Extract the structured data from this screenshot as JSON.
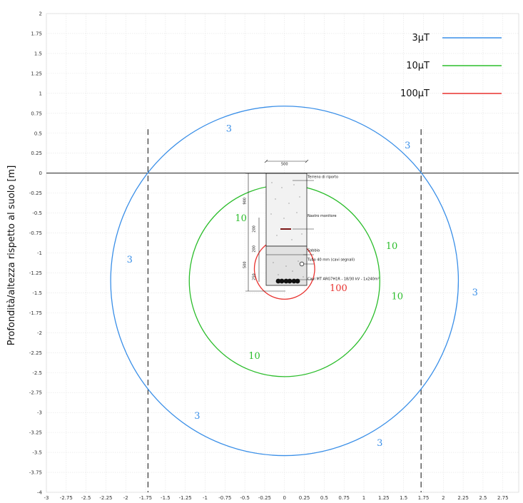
{
  "chart_data": {
    "type": "line",
    "title": "",
    "xlabel": "",
    "ylabel": "Profondità/altezza rispetto al suolo [m]",
    "xlim": [
      -3,
      2.95
    ],
    "ylim": [
      -4,
      2
    ],
    "x_ticks": [
      "-3",
      "-2.75",
      "-2.5",
      "-2.25",
      "-2",
      "-1.75",
      "-1.5",
      "-1.25",
      "-1",
      "-0.75",
      "-0.5",
      "-0.25",
      "0",
      "0.25",
      "0.5",
      "0.75",
      "1",
      "1.25",
      "1.5",
      "1.75",
      "2",
      "2.25",
      "2.5",
      "2.75"
    ],
    "y_ticks": [
      "2",
      "1.75",
      "1.5",
      "1.25",
      "1",
      "0.75",
      "0.5",
      "0.25",
      "0",
      "-0.25",
      "-0.5",
      "-0.75",
      "-1",
      "-1.25",
      "-1.5",
      "-1.75",
      "-2",
      "-2.25",
      "-2.5",
      "-2.75",
      "-3",
      "-3.25",
      "-3.5",
      "-3.75",
      "-4"
    ],
    "x_tick_values": [
      -3,
      -2.75,
      -2.5,
      -2.25,
      -2,
      -1.75,
      -1.5,
      -1.25,
      -1,
      -0.75,
      -0.5,
      -0.25,
      0,
      0.25,
      0.5,
      0.75,
      1,
      1.25,
      1.5,
      1.75,
      2,
      2.25,
      2.5,
      2.75
    ],
    "y_tick_values": [
      2,
      1.75,
      1.5,
      1.25,
      1,
      0.75,
      0.5,
      0.25,
      0,
      -0.25,
      -0.5,
      -0.75,
      -1,
      -1.25,
      -1.5,
      -1.75,
      -2,
      -2.25,
      -2.5,
      -2.75,
      -3,
      -3.25,
      -3.5,
      -3.75,
      -4
    ],
    "grid": true,
    "legend_position": "top-right",
    "legend": [
      {
        "label": "3µT",
        "color": "#3a8fe8"
      },
      {
        "label": "10µT",
        "color": "#2bbd2b"
      },
      {
        "label": "100µT",
        "color": "#e8322f"
      }
    ],
    "series": [
      {
        "name": "3µT",
        "color": "#3a8fe8",
        "shape": "circle",
        "center": [
          0,
          -1.35
        ],
        "radius": 2.19
      },
      {
        "name": "10µT",
        "color": "#2bbd2b",
        "shape": "circle",
        "center": [
          0,
          -1.35
        ],
        "radius": 1.2
      },
      {
        "name": "100µT",
        "color": "#e8322f",
        "shape": "circle",
        "center": [
          0,
          -1.2
        ],
        "radius": 0.38
      }
    ],
    "reference_lines": [
      {
        "type": "horizontal",
        "y": 0,
        "style": "solid",
        "color": "#222222"
      },
      {
        "type": "vertical",
        "x": -1.72,
        "y_range": [
          -4,
          0.55
        ],
        "style": "dashed",
        "color": "#222222"
      },
      {
        "type": "vertical",
        "x": 1.72,
        "y_range": [
          -4,
          0.55
        ],
        "style": "dashed",
        "color": "#222222"
      }
    ],
    "contour_labels": [
      {
        "text": "3",
        "x": -0.7,
        "y": 0.52,
        "color": "#3a8fe8"
      },
      {
        "text": "3",
        "x": 1.55,
        "y": 0.31,
        "color": "#3a8fe8"
      },
      {
        "text": "3",
        "x": -1.95,
        "y": -1.12,
        "color": "#3a8fe8"
      },
      {
        "text": "3",
        "x": 2.4,
        "y": -1.53,
        "color": "#3a8fe8"
      },
      {
        "text": "3",
        "x": -1.1,
        "y": -3.08,
        "color": "#3a8fe8"
      },
      {
        "text": "3",
        "x": 1.2,
        "y": -3.42,
        "color": "#3a8fe8"
      },
      {
        "text": "10",
        "x": -0.55,
        "y": -0.6,
        "color": "#2bbd2b"
      },
      {
        "text": "10",
        "x": 1.35,
        "y": -0.95,
        "color": "#2bbd2b"
      },
      {
        "text": "10",
        "x": 1.42,
        "y": -1.58,
        "color": "#2bbd2b"
      },
      {
        "text": "10",
        "x": -0.38,
        "y": -2.33,
        "color": "#2bbd2b"
      },
      {
        "text": "100",
        "x": 0.68,
        "y": -1.48,
        "color": "#e8322f"
      }
    ],
    "annotations": [
      {
        "text": "500",
        "x": 0,
        "y": 0.1
      },
      {
        "text": "Terreno di riporto",
        "x": 0.29,
        "y": -0.06
      },
      {
        "text": "Nastro monitore",
        "x": 0.29,
        "y": -0.55
      },
      {
        "text": "Sabbia",
        "x": 0.29,
        "y": -0.98
      },
      {
        "text": "Tubo 40 mm (cavi segnali)",
        "x": 0.29,
        "y": -1.1
      },
      {
        "text": "Cavi MT ARG7H1R - 18/30 kV - 1x240m²",
        "x": 0.29,
        "y": -1.34
      },
      {
        "text": "900",
        "x": -0.49,
        "y": -0.35
      },
      {
        "text": "200",
        "x": -0.37,
        "y": -0.7
      },
      {
        "text": "200",
        "x": -0.37,
        "y": -0.95
      },
      {
        "text": "500",
        "x": -0.49,
        "y": -1.15
      },
      {
        "text": "250",
        "x": -0.37,
        "y": -1.3
      }
    ]
  }
}
